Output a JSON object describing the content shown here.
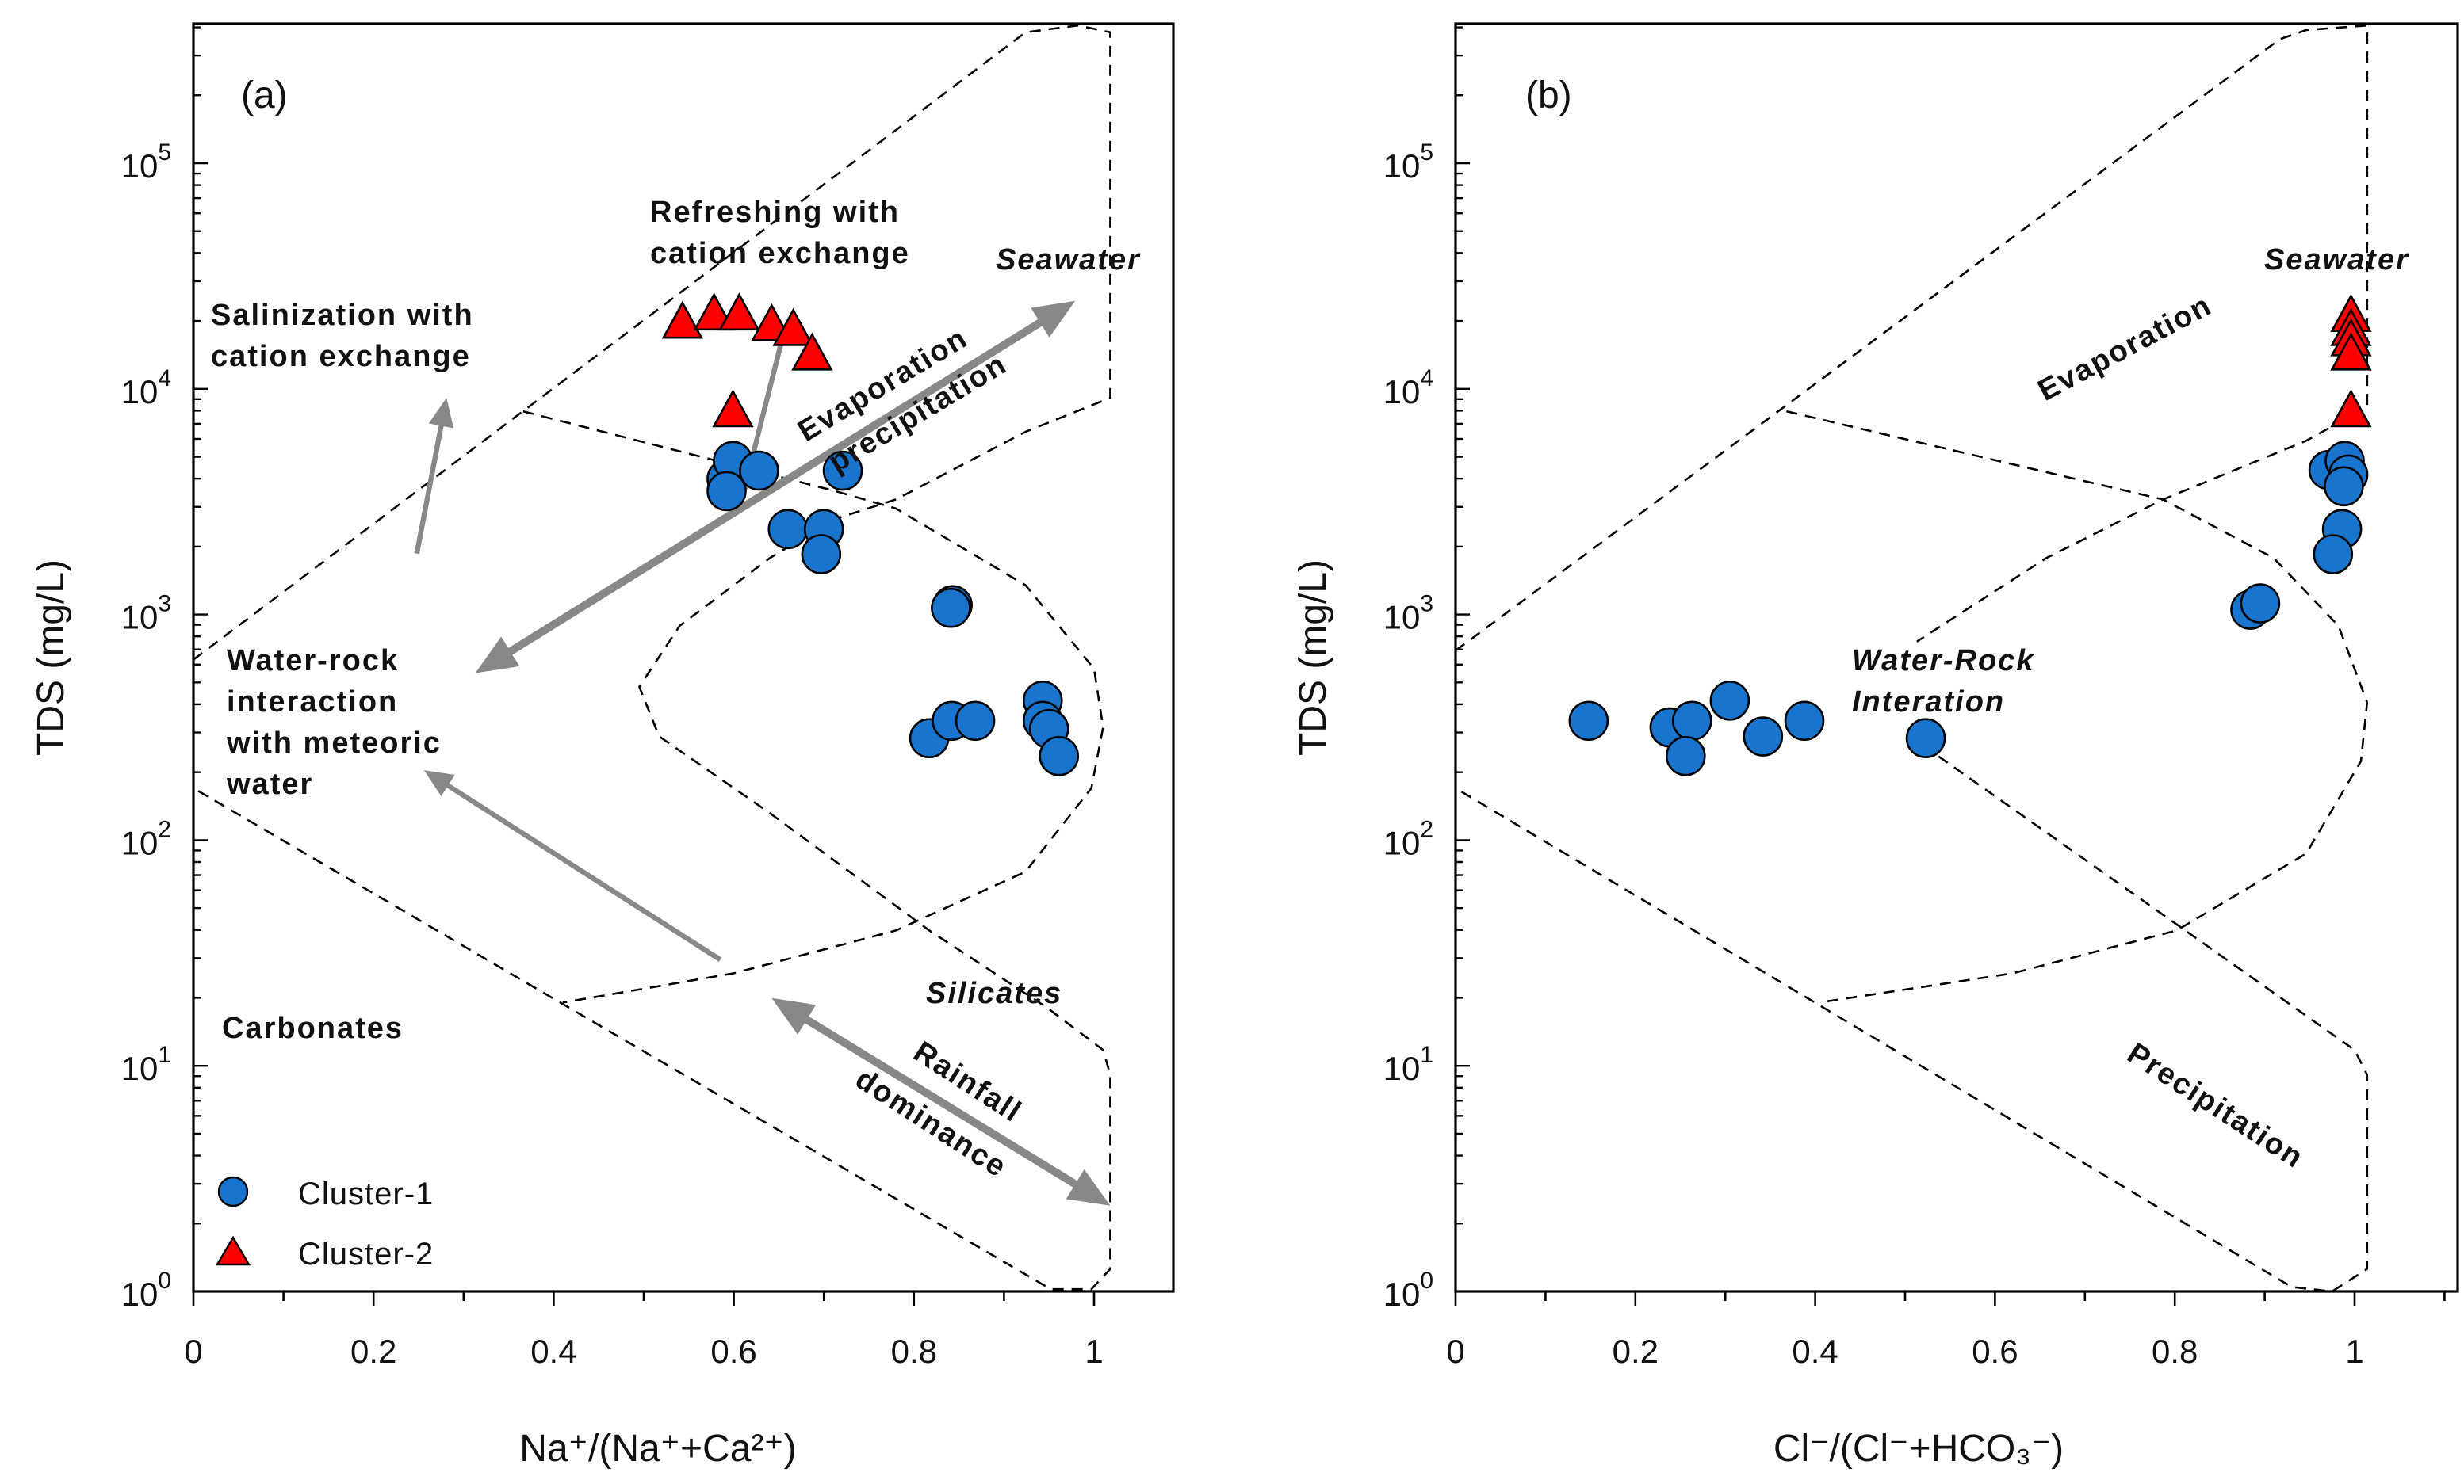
{
  "chart_data": [
    {
      "type": "scatter",
      "panel_label": "(a)",
      "xlabel": "Na⁺/(Na⁺+Ca²⁺)",
      "ylabel": "TDS (mg/L)",
      "xlim": [
        0,
        1.088
      ],
      "ylim_log10": [
        0,
        5.62
      ],
      "y_scale": "log",
      "x_ticks": [
        "0",
        "0.2",
        "0.4",
        "0.6",
        "0.8",
        "1"
      ],
      "x_tick_values": [
        0,
        0.2,
        0.4,
        0.6,
        0.8,
        1
      ],
      "y_ticks": [
        {
          "base": "10",
          "exp": "0"
        },
        {
          "base": "10",
          "exp": "1"
        },
        {
          "base": "10",
          "exp": "2"
        },
        {
          "base": "10",
          "exp": "3"
        },
        {
          "base": "10",
          "exp": "4"
        },
        {
          "base": "10",
          "exp": "5"
        }
      ],
      "legend": {
        "placement": "bottom-left",
        "entries": [
          "Cluster-1",
          "Cluster-2"
        ]
      },
      "series": [
        {
          "name": "Cluster-1",
          "marker": "circle",
          "color": "#1874CD",
          "x": [
            0.592,
            0.599,
            0.592,
            0.628,
            0.721,
            0.66,
            0.7,
            0.697,
            0.843,
            0.841,
            0.817,
            0.842,
            0.868,
            0.943,
            0.943,
            0.95,
            0.961
          ],
          "y": [
            3990,
            4790,
            3520,
            4340,
            4340,
            2390,
            2390,
            1850,
            1100,
            1070,
            283,
            338,
            338,
            415,
            338,
            311,
            236
          ]
        },
        {
          "name": "Cluster-2",
          "marker": "triangle",
          "color": "#FF0000",
          "x": [
            0.543,
            0.578,
            0.606,
            0.642,
            0.666,
            0.687,
            0.599
          ],
          "y": [
            19500,
            21200,
            21200,
            19000,
            18100,
            14100,
            7900
          ]
        }
      ],
      "boundaries": [
        {
          "name": "outer-boundary",
          "points_log": [
            [
              0,
              2.8
            ],
            [
              0.924,
              5.58
            ],
            [
              0.982,
              5.61
            ],
            [
              1.018,
              5.58
            ],
            [
              1.018,
              3.96
            ],
            [
              0.924,
              3.81
            ],
            [
              0.78,
              3.51
            ],
            [
              0.71,
              3.42
            ],
            [
              0.64,
              3.25
            ],
            [
              0.54,
              2.95
            ],
            [
              0.495,
              2.68
            ],
            [
              0.517,
              2.46
            ],
            [
              0.64,
              2.12
            ],
            [
              0.817,
              1.6
            ],
            [
              0.947,
              1.26
            ],
            [
              1.01,
              1.07
            ],
            [
              1.018,
              0.96
            ],
            [
              1.018,
              0.1
            ],
            [
              0.997,
              0.01
            ],
            [
              0.952,
              0.01
            ],
            [
              0,
              2.23
            ]
          ]
        },
        {
          "name": "inner-boundary",
          "points_log": [
            [
              0.366,
              3.9
            ],
            [
              0.71,
              3.55
            ],
            [
              0.78,
              3.47
            ],
            [
              0.924,
              3.13
            ],
            [
              1.0,
              2.76
            ],
            [
              1.01,
              2.5
            ],
            [
              0.997,
              2.23
            ],
            [
              0.924,
              1.86
            ],
            [
              0.78,
              1.6
            ],
            [
              0.6,
              1.41
            ],
            [
              0.41,
              1.28
            ]
          ]
        }
      ],
      "arrows": [
        {
          "name": "evaporation-precipitation-arrow",
          "from_log": [
            0.313,
            2.74
          ],
          "to_log": [
            0.979,
            4.39
          ],
          "double": true,
          "width": "thick"
        },
        {
          "name": "salinization-arrow",
          "from_log": [
            0.248,
            3.27
          ],
          "to_log": [
            0.281,
            3.96
          ],
          "double": false,
          "width": "thin"
        },
        {
          "name": "refreshing-arrow",
          "from_log": [
            0.653,
            4.21
          ],
          "to_log": [
            0.61,
            3.53
          ],
          "double": false,
          "width": "thin"
        },
        {
          "name": "water-rock-arrow",
          "from_log": [
            0.585,
            1.47
          ],
          "to_log": [
            0.256,
            2.31
          ],
          "double": false,
          "width": "thin"
        },
        {
          "name": "rainfall-dominance-arrow",
          "from_log": [
            0.642,
            1.3
          ],
          "to_log": [
            1.018,
            0.38
          ],
          "double": true,
          "width": "thick"
        }
      ],
      "annotations": {
        "refreshing": [
          "Refreshing with",
          "cation exchange"
        ],
        "seawater": "Seawater",
        "salinization": [
          "Salinization with",
          "cation exchange"
        ],
        "evaporation": "Evaporation",
        "precipitation": "precipitation",
        "water_rock": [
          "Water-rock",
          "interaction",
          "with meteoric",
          "water"
        ],
        "carbonates": "Carbonates",
        "silicates": "Silicates",
        "rainfall": "Rainfall",
        "dominance": "dominance"
      }
    },
    {
      "type": "scatter",
      "panel_label": "(b)",
      "xlabel": "Cl⁻/(Cl⁻+HCO₃⁻)",
      "ylabel": "TDS (mg/L)",
      "xlim": [
        0,
        1.115
      ],
      "ylim_log10": [
        0,
        5.62
      ],
      "y_scale": "log",
      "x_ticks": [
        "0",
        "0.2",
        "0.4",
        "0.6",
        "0.8",
        "1"
      ],
      "x_tick_values": [
        0,
        0.2,
        0.4,
        0.6,
        0.8,
        1
      ],
      "y_ticks": [
        {
          "base": "10",
          "exp": "0"
        },
        {
          "base": "10",
          "exp": "1"
        },
        {
          "base": "10",
          "exp": "2"
        },
        {
          "base": "10",
          "exp": "3"
        },
        {
          "base": "10",
          "exp": "4"
        },
        {
          "base": "10",
          "exp": "5"
        }
      ],
      "series": [
        {
          "name": "Cluster-1",
          "marker": "circle",
          "color": "#1874CD",
          "x": [
            0.148,
            0.238,
            0.263,
            0.256,
            0.305,
            0.342,
            0.388,
            0.523,
            0.884,
            0.895,
            0.971,
            0.989,
            0.993,
            0.988,
            0.986,
            0.976
          ],
          "y": [
            338,
            316,
            338,
            236,
            415,
            288,
            338,
            283,
            1050,
            1120,
            4370,
            4790,
            4170,
            3700,
            2390,
            1850
          ]
        },
        {
          "name": "Cluster-2",
          "marker": "triangle",
          "color": "#FF0000",
          "x": [
            0.996,
            0.996,
            0.996,
            0.996,
            0.996
          ],
          "y": [
            20900,
            18100,
            16300,
            14100,
            7900
          ]
        }
      ],
      "boundaries": [
        {
          "name": "outer-boundary",
          "points_log": [
            [
              0,
              2.84
            ],
            [
              0.917,
              5.55
            ],
            [
              0.946,
              5.59
            ],
            [
              1.014,
              5.61
            ],
            [
              1.014,
              3.92
            ],
            [
              0.946,
              3.77
            ],
            [
              0.787,
              3.51
            ],
            [
              0.657,
              3.25
            ],
            [
              0.513,
              2.88
            ]
          ]
        },
        {
          "name": "lower-boundary",
          "points_log": [
            [
              0.52,
              2.42
            ],
            [
              1.0,
              1.07
            ],
            [
              1.014,
              0.96
            ],
            [
              1.014,
              0.1
            ],
            [
              0.975,
              0.0
            ],
            [
              0.93,
              0.02
            ],
            [
              0,
              2.23
            ]
          ]
        },
        {
          "name": "inner-boundary",
          "points_log": [
            [
              0.368,
              3.9
            ],
            [
              0.787,
              3.51
            ],
            [
              0.91,
              3.25
            ],
            [
              0.982,
              2.95
            ],
            [
              1.014,
              2.61
            ],
            [
              1.007,
              2.35
            ],
            [
              0.946,
              1.94
            ],
            [
              0.802,
              1.6
            ],
            [
              0.62,
              1.41
            ],
            [
              0.404,
              1.28
            ]
          ]
        }
      ],
      "annotations": {
        "seawater": "Seawater",
        "evaporation": "Evaporation",
        "water_rock": [
          "Water-Rock",
          "Interation"
        ],
        "precipitation": "Precipitation"
      }
    }
  ]
}
